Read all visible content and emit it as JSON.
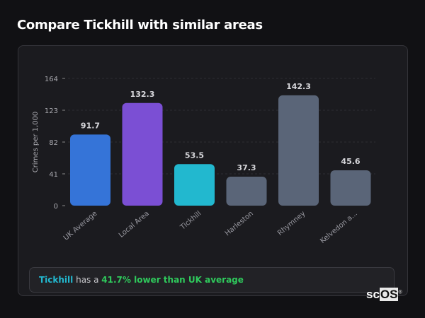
{
  "header": {
    "title": "Compare Tickhill with similar areas"
  },
  "chart_data": {
    "type": "bar",
    "title": "",
    "xlabel": "",
    "ylabel": "Crimes per 1,000",
    "ylim": [
      0,
      164
    ],
    "yticks": [
      0,
      41,
      82,
      123,
      164
    ],
    "grid": true,
    "categories": [
      "UK Average",
      "Local Area",
      "Tickhill",
      "Harleston",
      "Rhymney",
      "Kelvedon a..."
    ],
    "values": [
      91.7,
      132.3,
      53.5,
      37.3,
      142.3,
      45.6
    ],
    "value_labels": [
      "91.7",
      "132.3",
      "53.5",
      "37.3",
      "142.3",
      "45.6"
    ],
    "colors": [
      "#3574d8",
      "#7b4fd4",
      "#22b8cf",
      "#5a6578",
      "#5a6578",
      "#5a6578"
    ]
  },
  "summary": {
    "place": "Tickhill",
    "middle": " has a ",
    "comparison": "41.7% lower than UK average",
    "place_color": "#22b8cf",
    "comparison_color": "#2fca5c"
  },
  "watermark": {
    "text_plain": "sc",
    "text_box": "OS",
    "mark": "®"
  }
}
